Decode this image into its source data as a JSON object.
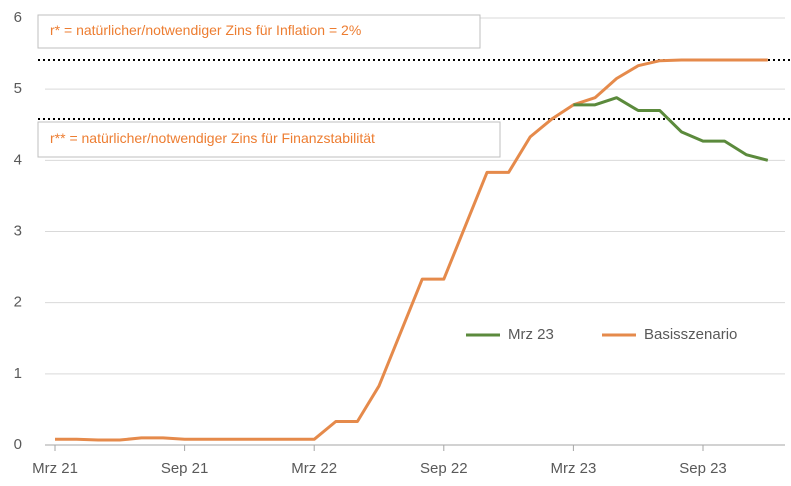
{
  "chart_data": {
    "type": "line",
    "categories": [
      "Mrz 21",
      null,
      null,
      null,
      null,
      null,
      "Sep 21",
      null,
      null,
      null,
      null,
      null,
      "Mrz 22",
      null,
      null,
      null,
      null,
      null,
      "Sep 22",
      null,
      null,
      null,
      null,
      null,
      "Mrz 23",
      null,
      null,
      null,
      null,
      null,
      "Sep 23",
      null,
      null,
      null
    ],
    "series": [
      {
        "name": "Mrz 23",
        "color": "#5b8a3c",
        "values": [
          null,
          null,
          null,
          null,
          null,
          null,
          null,
          null,
          null,
          null,
          null,
          null,
          null,
          null,
          null,
          null,
          null,
          null,
          null,
          null,
          null,
          null,
          null,
          null,
          4.78,
          4.78,
          4.88,
          4.7,
          4.7,
          4.4,
          4.27,
          4.27,
          4.08,
          4.0
        ]
      },
      {
        "name": "Basisszenario",
        "color": "#e58a4b",
        "values": [
          0.08,
          0.08,
          0.07,
          0.07,
          0.1,
          0.1,
          0.08,
          0.08,
          0.08,
          0.08,
          0.08,
          0.08,
          0.08,
          0.33,
          0.33,
          0.83,
          1.58,
          2.33,
          2.33,
          3.08,
          3.83,
          3.83,
          4.33,
          4.58,
          4.78,
          4.88,
          5.15,
          5.33,
          5.4,
          5.41,
          5.41,
          5.41,
          5.41,
          5.41
        ]
      }
    ],
    "ylim": [
      0,
      6
    ],
    "yticks": [
      0,
      1,
      2,
      3,
      4,
      5,
      6
    ],
    "grid": true,
    "legend": "lower right",
    "reference_lines": [
      {
        "value": 5.41,
        "label": "r* = natürlicher/notwendiger Zins für Inflation = 2%"
      },
      {
        "value": 4.58,
        "label": "r** = natürlicher/notwendiger Zins für Finanzstabilität"
      }
    ]
  }
}
